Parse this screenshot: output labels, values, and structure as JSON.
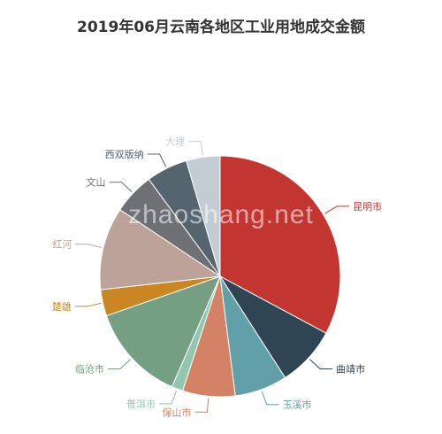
{
  "watermark": "zhaoshang.net",
  "chart_data": {
    "type": "pie",
    "title": "2019年06月云南各地区工业用地成交金额",
    "categories": [
      "昆明市",
      "曲靖市",
      "玉溪市",
      "保山市",
      "普洱市",
      "临沧市",
      "楚雄",
      "红河",
      "文山",
      "西双版纳",
      "大理"
    ],
    "values": [
      32.5,
      8.0,
      7.0,
      7.0,
      1.5,
      13.0,
      3.5,
      11.0,
      5.5,
      5.5,
      4.5
    ],
    "colors": [
      "#c23531",
      "#2f4554",
      "#61a0a8",
      "#d48265",
      "#91c7ae",
      "#749f83",
      "#ca8622",
      "#bda29a",
      "#6e7074",
      "#546570",
      "#c4ccd3"
    ],
    "legend": "none"
  }
}
